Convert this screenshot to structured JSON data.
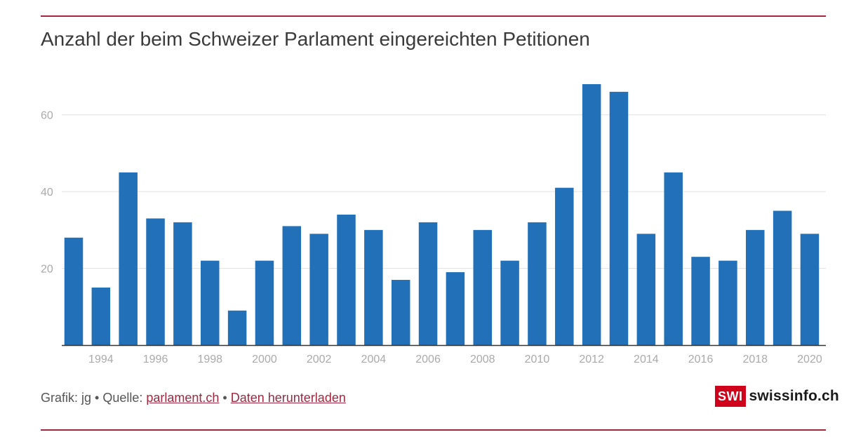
{
  "colors": {
    "bar": "#2170b8",
    "rule": "#a3273f",
    "grid": "#e0e0e0",
    "axis": "#333333",
    "tick_text": "#aaaaaa",
    "link": "#a3273f",
    "logo_bg": "#d0021b"
  },
  "chart_data": {
    "type": "bar",
    "title": "Anzahl der beim Schweizer Parlament eingereichten Petitionen",
    "xlabel": "",
    "ylabel": "",
    "categories": [
      1993,
      1994,
      1995,
      1996,
      1997,
      1998,
      1999,
      2000,
      2001,
      2002,
      2003,
      2004,
      2005,
      2006,
      2007,
      2008,
      2009,
      2010,
      2011,
      2012,
      2013,
      2014,
      2015,
      2016,
      2017,
      2018,
      2019,
      2020
    ],
    "values": [
      28,
      15,
      45,
      33,
      32,
      22,
      9,
      22,
      31,
      29,
      34,
      30,
      17,
      32,
      19,
      30,
      22,
      32,
      41,
      68,
      66,
      29,
      45,
      23,
      22,
      30,
      35,
      29
    ],
    "ylim": [
      0,
      70
    ],
    "yticks": [
      20,
      40,
      60
    ],
    "xtick_labels": [
      "1994",
      "1996",
      "1998",
      "2000",
      "2002",
      "2004",
      "2006",
      "2008",
      "2010",
      "2012",
      "2014",
      "2016",
      "2018",
      "2020"
    ],
    "grid": true
  },
  "footer": {
    "prefix": "Grafik: jg • Quelle: ",
    "source_link": "parlament.ch",
    "separator": " • ",
    "download_link": "Daten herunterladen"
  },
  "logo": {
    "box": "SWI",
    "text": "swissinfo.ch"
  }
}
